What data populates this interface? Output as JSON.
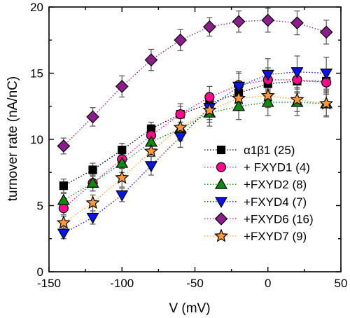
{
  "chart_data": {
    "type": "scatter",
    "xlabel": "V (mV)",
    "ylabel": "turnover rate (nA/nC)",
    "xlim": [
      -150,
      50
    ],
    "ylim": [
      0,
      20
    ],
    "xticks": [
      -150,
      -100,
      -50,
      0,
      50
    ],
    "yticks": [
      0,
      5,
      10,
      15,
      20
    ],
    "grid": false,
    "legend_position": "center-right",
    "x": [
      -140,
      -120,
      -100,
      -80,
      -60,
      -40,
      -20,
      0,
      20,
      40
    ],
    "series": [
      {
        "name": "α1β1 (25)",
        "marker": "square",
        "fill": "#000000",
        "line_color": "#000000",
        "values": [
          6.5,
          7.7,
          9.2,
          10.8,
          11.9,
          12.7,
          13.5,
          14.2,
          14.4,
          14.4
        ],
        "errors": [
          0.5,
          0.5,
          0.5,
          0.5,
          0.6,
          0.7,
          0.8,
          0.8,
          0.9,
          0.9
        ]
      },
      {
        "name": "+ FXYD1 (4)",
        "marker": "circle",
        "fill": "#ff0a8c",
        "line_color": "#ff0a8c",
        "values": [
          4.8,
          6.7,
          8.5,
          10.3,
          11.9,
          13.2,
          14.1,
          14.5,
          14.5,
          14.3
        ],
        "errors": [
          0.5,
          0.6,
          0.7,
          0.8,
          0.8,
          0.8,
          0.9,
          0.9,
          0.9,
          0.9
        ]
      },
      {
        "name": "+FXYD2 (8)",
        "marker": "triangle-up",
        "fill": "#0f8a0f",
        "line_color": "#0f8a0f",
        "values": [
          5.4,
          6.7,
          8.2,
          9.8,
          10.8,
          12.0,
          12.5,
          12.8,
          12.8,
          12.7
        ],
        "errors": [
          0.5,
          0.6,
          0.7,
          0.8,
          0.9,
          1.0,
          1.0,
          1.0,
          1.0,
          1.0
        ]
      },
      {
        "name": "+FXYD4 (7)",
        "marker": "triangle-down",
        "fill": "#0a14e6",
        "line_color": "#0a14e6",
        "values": [
          2.9,
          4.1,
          5.8,
          8.0,
          10.2,
          12.4,
          14.0,
          14.9,
          15.1,
          15.0
        ],
        "errors": [
          0.4,
          0.5,
          0.5,
          0.7,
          0.8,
          0.9,
          1.1,
          1.2,
          1.2,
          1.2
        ]
      },
      {
        "name": "+FXYD6 (16)",
        "marker": "diamond",
        "fill": "#8a1e8a",
        "line_color": "#8a1e8a",
        "values": [
          9.5,
          11.7,
          14.0,
          16.0,
          17.5,
          18.5,
          18.9,
          19.0,
          18.8,
          18.1
        ],
        "errors": [
          0.6,
          0.7,
          0.8,
          0.8,
          0.8,
          0.7,
          0.8,
          0.9,
          0.9,
          0.9
        ]
      },
      {
        "name": "+FXYD7 (9)",
        "marker": "star",
        "fill": "#ff9a3c",
        "line_color": "#ff9a3c",
        "values": [
          3.7,
          5.2,
          7.1,
          9.1,
          10.9,
          12.2,
          13.1,
          13.3,
          13.0,
          12.7
        ],
        "errors": [
          0.5,
          0.6,
          0.7,
          0.8,
          0.9,
          0.9,
          0.9,
          0.9,
          0.9,
          0.9
        ]
      }
    ]
  }
}
